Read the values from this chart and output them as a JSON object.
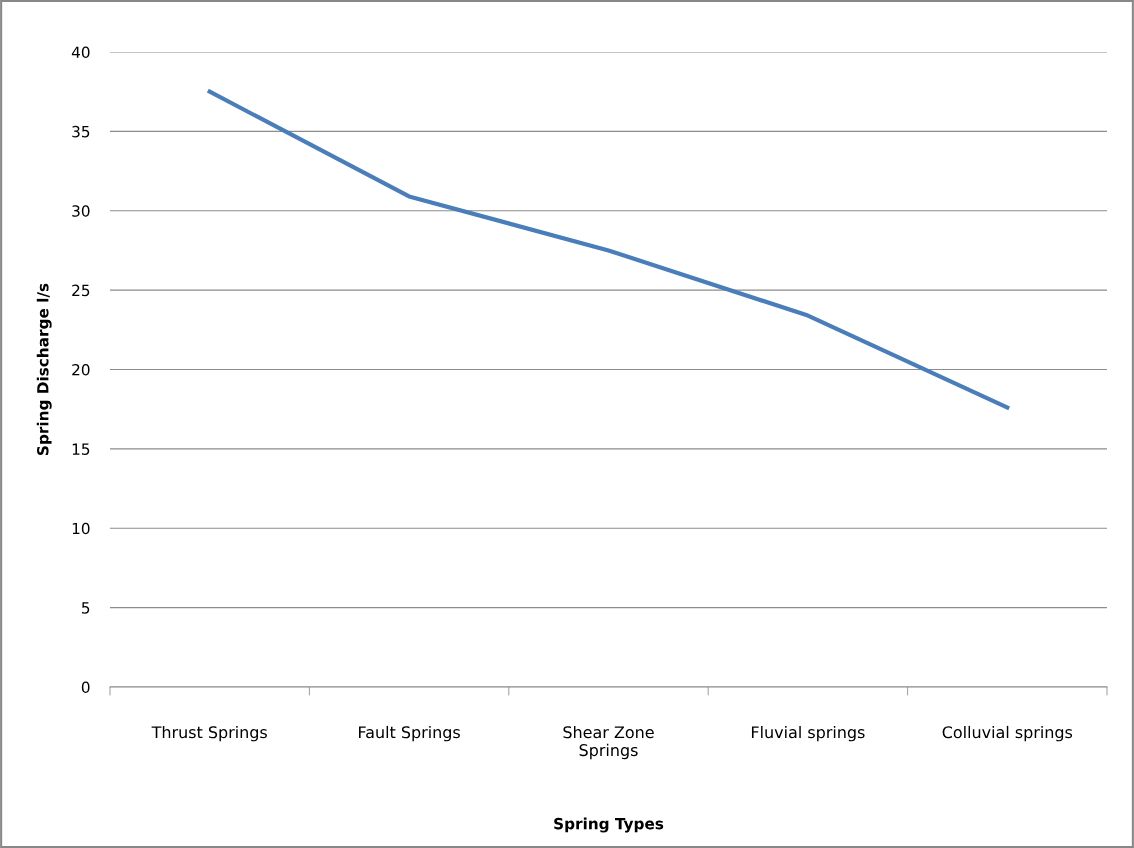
{
  "chart_data": {
    "type": "line",
    "xlabel": "Spring Types",
    "ylabel": "Spring Discharge l/s",
    "categories": [
      "Thrust Springs",
      "Fault Springs",
      "Shear Zone Springs",
      "Fluvial springs",
      "Colluvial springs"
    ],
    "series": [
      {
        "color": "#4a7ebb",
        "values": [
          37.5,
          30.9,
          27.5,
          23.4,
          17.6
        ]
      }
    ],
    "ylim": [
      0,
      40
    ],
    "yticks": [
      0,
      5,
      10,
      15,
      20,
      25,
      30,
      35,
      40
    ],
    "grid": "y",
    "legend": false,
    "marker": "none",
    "line_style": "solid"
  }
}
